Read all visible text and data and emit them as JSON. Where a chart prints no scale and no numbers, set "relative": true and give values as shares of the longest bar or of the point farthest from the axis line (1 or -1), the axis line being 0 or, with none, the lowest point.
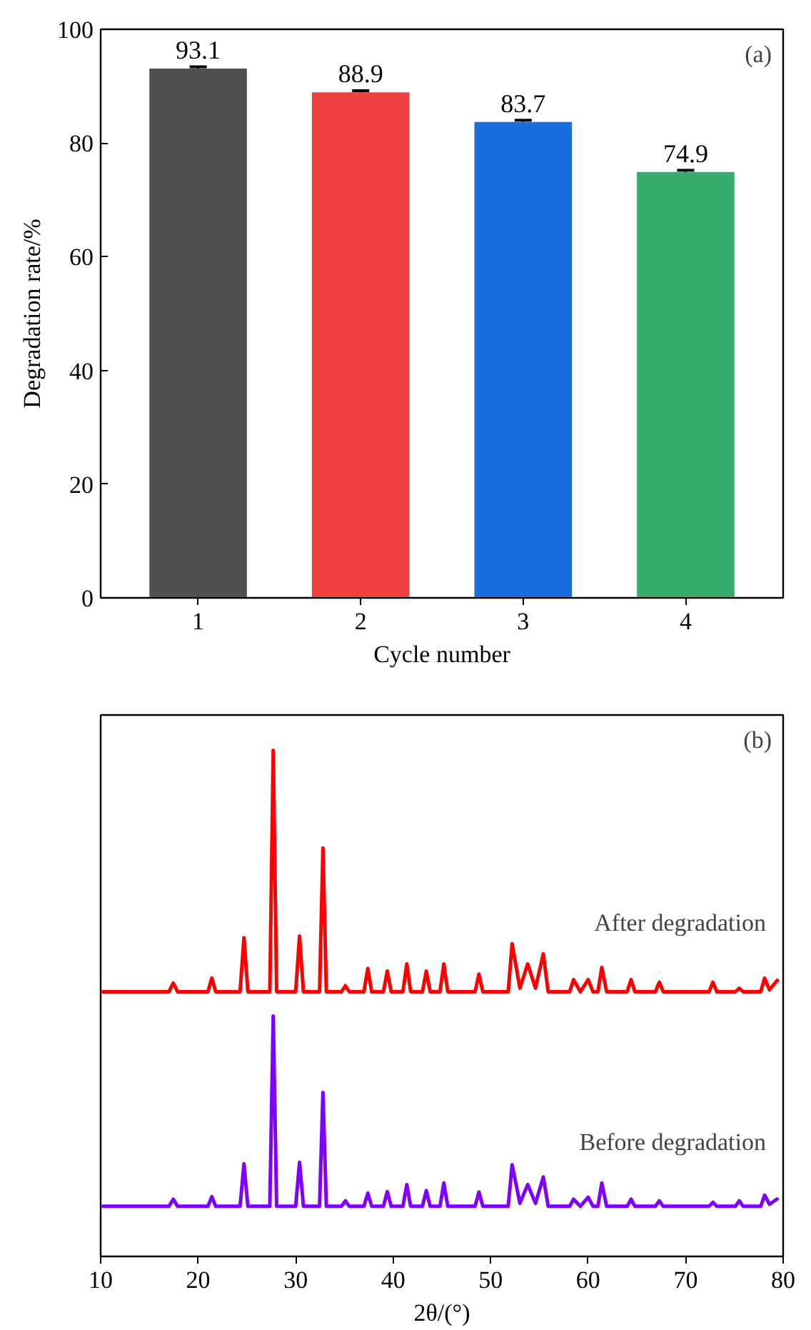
{
  "chart_data": [
    {
      "type": "bar",
      "categories": [
        "1",
        "2",
        "3",
        "4"
      ],
      "xlabel": "Cycle number",
      "ylabel": "Degradation rate/%",
      "values": [
        93.1,
        88.9,
        83.7,
        74.9
      ],
      "colors": [
        "#505050",
        "#ef4040",
        "#1a6edc",
        "#36ab6b"
      ],
      "errors": [
        0.3,
        0.3,
        0.3,
        0.3
      ],
      "data_labels": true,
      "ylim": [
        0,
        100
      ],
      "yticks": [
        0,
        20,
        40,
        60,
        80,
        100
      ],
      "annotations": [
        "(a)"
      ],
      "grid": false
    },
    {
      "type": "line",
      "relative": true,
      "xlabel": "2θ/(°)",
      "xlim": [
        10,
        80
      ],
      "xticks": [
        10,
        20,
        30,
        40,
        50,
        60,
        70,
        80
      ],
      "annotations": [
        "(b)"
      ],
      "grid": false,
      "series": [
        {
          "name": "After degradation",
          "color": "#ff0000",
          "x": [
            10.1,
            17.0,
            17.45,
            17.9,
            21.0,
            21.4,
            21.8,
            24.3,
            24.7,
            25.1,
            27.35,
            27.7,
            28.05,
            30.0,
            30.4,
            30.8,
            32.45,
            32.8,
            33.15,
            34.7,
            35.1,
            35.5,
            37.0,
            37.4,
            37.8,
            39.0,
            39.4,
            39.8,
            41.0,
            41.4,
            41.8,
            43.0,
            43.4,
            43.8,
            44.8,
            45.2,
            45.6,
            48.4,
            48.8,
            49.2,
            51.8,
            52.2,
            53.0,
            53.8,
            54.6,
            55.4,
            55.9,
            58.1,
            58.5,
            59.2,
            60.0,
            60.5,
            61.0,
            61.4,
            61.9,
            64.0,
            64.4,
            64.8,
            66.9,
            67.3,
            67.7,
            72.4,
            72.8,
            73.2,
            75.1,
            75.5,
            75.9,
            77.7,
            78.1,
            78.6,
            79.5
          ],
          "values": [
            0.523,
            0.523,
            0.54,
            0.523,
            0.523,
            0.55,
            0.523,
            0.523,
            0.63,
            0.523,
            0.523,
            1.0,
            0.523,
            0.523,
            0.633,
            0.523,
            0.523,
            0.807,
            0.523,
            0.523,
            0.535,
            0.523,
            0.523,
            0.569,
            0.523,
            0.523,
            0.564,
            0.523,
            0.523,
            0.578,
            0.523,
            0.523,
            0.564,
            0.523,
            0.523,
            0.578,
            0.523,
            0.523,
            0.558,
            0.523,
            0.523,
            0.618,
            0.53,
            0.578,
            0.53,
            0.598,
            0.523,
            0.523,
            0.547,
            0.523,
            0.547,
            0.523,
            0.523,
            0.571,
            0.523,
            0.523,
            0.547,
            0.523,
            0.523,
            0.542,
            0.523,
            0.523,
            0.542,
            0.523,
            0.523,
            0.53,
            0.523,
            0.523,
            0.55,
            0.527,
            0.548
          ]
        },
        {
          "name": "Before degradation",
          "color": "#8000ff",
          "x": [
            10.1,
            17.0,
            17.45,
            17.9,
            21.0,
            21.4,
            21.8,
            24.3,
            24.7,
            25.1,
            27.35,
            27.7,
            28.05,
            30.0,
            30.4,
            30.8,
            32.45,
            32.8,
            33.15,
            34.7,
            35.1,
            35.5,
            37.0,
            37.4,
            37.8,
            39.0,
            39.4,
            39.8,
            41.0,
            41.4,
            41.8,
            43.0,
            43.4,
            43.8,
            44.8,
            45.2,
            45.6,
            48.4,
            48.8,
            49.2,
            51.8,
            52.2,
            53.0,
            53.8,
            54.6,
            55.4,
            55.9,
            58.1,
            58.5,
            59.2,
            60.0,
            60.5,
            61.0,
            61.4,
            61.9,
            64.0,
            64.4,
            64.8,
            66.9,
            67.3,
            67.7,
            72.4,
            72.8,
            73.2,
            75.1,
            75.5,
            75.9,
            77.7,
            78.1,
            78.6,
            79.5
          ],
          "values": [
            0.099,
            0.099,
            0.113,
            0.099,
            0.099,
            0.118,
            0.099,
            0.099,
            0.183,
            0.099,
            0.099,
            0.475,
            0.099,
            0.099,
            0.186,
            0.099,
            0.099,
            0.324,
            0.099,
            0.099,
            0.11,
            0.099,
            0.099,
            0.125,
            0.099,
            0.099,
            0.128,
            0.099,
            0.099,
            0.142,
            0.099,
            0.099,
            0.13,
            0.099,
            0.099,
            0.145,
            0.099,
            0.099,
            0.127,
            0.099,
            0.099,
            0.181,
            0.105,
            0.142,
            0.105,
            0.157,
            0.099,
            0.099,
            0.113,
            0.099,
            0.117,
            0.099,
            0.099,
            0.145,
            0.099,
            0.099,
            0.113,
            0.099,
            0.099,
            0.11,
            0.099,
            0.099,
            0.107,
            0.099,
            0.099,
            0.11,
            0.099,
            0.099,
            0.121,
            0.103,
            0.115
          ]
        }
      ]
    }
  ]
}
